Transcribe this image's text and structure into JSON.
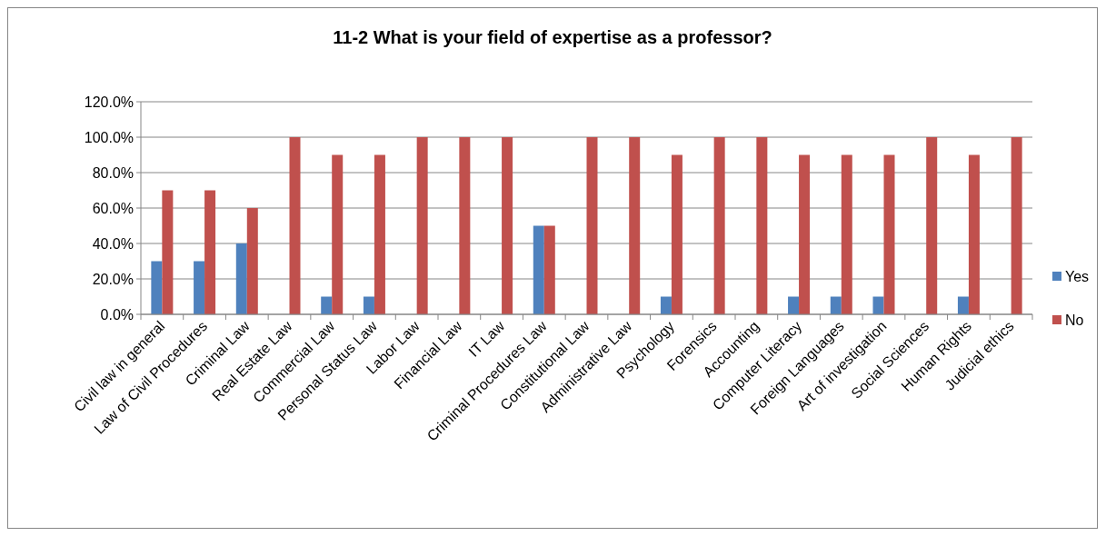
{
  "chart_data": {
    "type": "bar",
    "title": "11-2 What is your field of expertise as a professor?",
    "categories": [
      "Civil law in general",
      "Law of Civil Procedures",
      "Criminal Law",
      "Real Estate Law",
      "Commercial Law",
      "Personal Status Law",
      "Labor Law",
      "Financial Law",
      "IT Law",
      "Criminal Procedures Law",
      "Constitutional Law",
      "Administrative Law",
      "Psychology",
      "Forensics",
      "Accounting",
      "Computer Literacy",
      "Foreign Languages",
      "Art of investigation",
      "Social Sciences",
      "Human Rights",
      "Judicial ethics"
    ],
    "series": [
      {
        "name": "Yes",
        "color": "#4f81bd",
        "values": [
          30,
          30,
          40,
          0,
          10,
          10,
          0,
          0,
          0,
          50,
          0,
          0,
          10,
          0,
          0,
          10,
          10,
          10,
          0,
          10,
          0
        ]
      },
      {
        "name": "No",
        "color": "#c0504d",
        "values": [
          70,
          70,
          60,
          100,
          90,
          90,
          100,
          100,
          100,
          50,
          100,
          100,
          90,
          100,
          100,
          90,
          90,
          90,
          100,
          90,
          100
        ]
      }
    ],
    "ylim": [
      0,
      120
    ],
    "yticks": [
      {
        "value": 0,
        "label": "0.0%"
      },
      {
        "value": 20,
        "label": "20.0%"
      },
      {
        "value": 40,
        "label": "40.0%"
      },
      {
        "value": 60,
        "label": "60.0%"
      },
      {
        "value": 80,
        "label": "80.0%"
      },
      {
        "value": 100,
        "label": "100.0%"
      },
      {
        "value": 120,
        "label": "120.0%"
      }
    ],
    "grid": "y",
    "legend": "right"
  }
}
